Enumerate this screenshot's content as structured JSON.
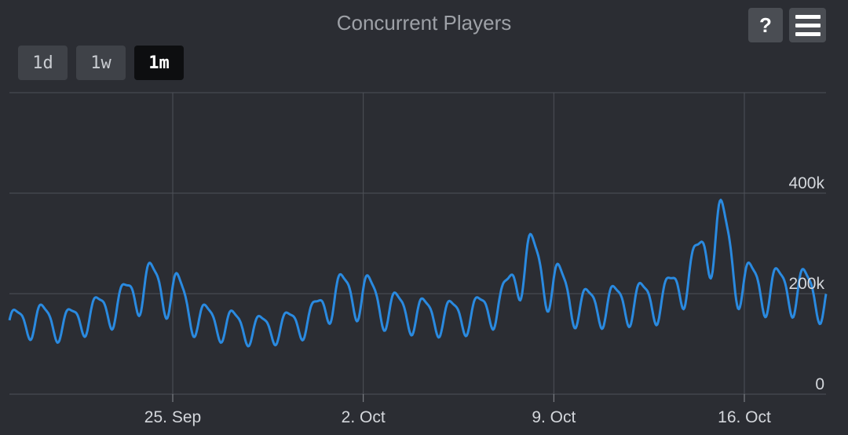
{
  "toolbar": {
    "help_label": "?",
    "menu_icon": "hamburger-menu-icon",
    "range_buttons": [
      {
        "label": "1d",
        "active": false
      },
      {
        "label": "1w",
        "active": false
      },
      {
        "label": "1m",
        "active": true
      }
    ]
  },
  "colors": {
    "background": "#2b2d33",
    "line": "#2a8ae0",
    "grid": "#4e5158",
    "title": "#9ea1a7"
  },
  "chart_data": {
    "type": "line",
    "title": "Concurrent Players",
    "xlabel": "",
    "ylabel": "",
    "ylim": [
      0,
      600000
    ],
    "xlim": [
      "2023-09-19",
      "2023-10-19"
    ],
    "yticks": [
      {
        "value": 0,
        "label": "0"
      },
      {
        "value": 200000,
        "label": "200k"
      },
      {
        "value": 400000,
        "label": "400k"
      }
    ],
    "xticks": [
      {
        "date": "2023-09-25",
        "label": "25. Sep"
      },
      {
        "date": "2023-10-02",
        "label": "2. Oct"
      },
      {
        "date": "2023-10-09",
        "label": "9. Oct"
      },
      {
        "date": "2023-10-16",
        "label": "16. Oct"
      }
    ],
    "grid": true,
    "legend": "none",
    "series": [
      {
        "values": [
          [
            "2023-09-19",
            140000
          ],
          [
            "2023-09-20",
            150000
          ],
          [
            "2023-09-21",
            140000
          ],
          [
            "2023-09-22",
            160000
          ],
          [
            "2023-09-23",
            180000
          ],
          [
            "2023-09-24",
            220000
          ],
          [
            "2023-09-25",
            205000
          ],
          [
            "2023-09-26",
            150000
          ],
          [
            "2023-09-27",
            140000
          ],
          [
            "2023-09-28",
            130000
          ],
          [
            "2023-09-29",
            135000
          ],
          [
            "2023-09-30",
            150000
          ],
          [
            "2023-10-01",
            200000
          ],
          [
            "2023-10-02",
            200000
          ],
          [
            "2023-10-03",
            170000
          ],
          [
            "2023-10-04",
            160000
          ],
          [
            "2023-10-05",
            155000
          ],
          [
            "2023-10-06",
            160000
          ],
          [
            "2023-10-07",
            180000
          ],
          [
            "2023-10-08",
            270000
          ],
          [
            "2023-10-09",
            220000
          ],
          [
            "2023-10-10",
            175000
          ],
          [
            "2023-10-11",
            180000
          ],
          [
            "2023-10-12",
            185000
          ],
          [
            "2023-10-13",
            190000
          ],
          [
            "2023-10-14",
            240000
          ],
          [
            "2023-10-15",
            330000
          ],
          [
            "2023-10-16",
            220000
          ],
          [
            "2023-10-17",
            210000
          ],
          [
            "2023-10-18",
            210000
          ],
          [
            "2023-10-19",
            190000
          ]
        ]
      }
    ]
  }
}
